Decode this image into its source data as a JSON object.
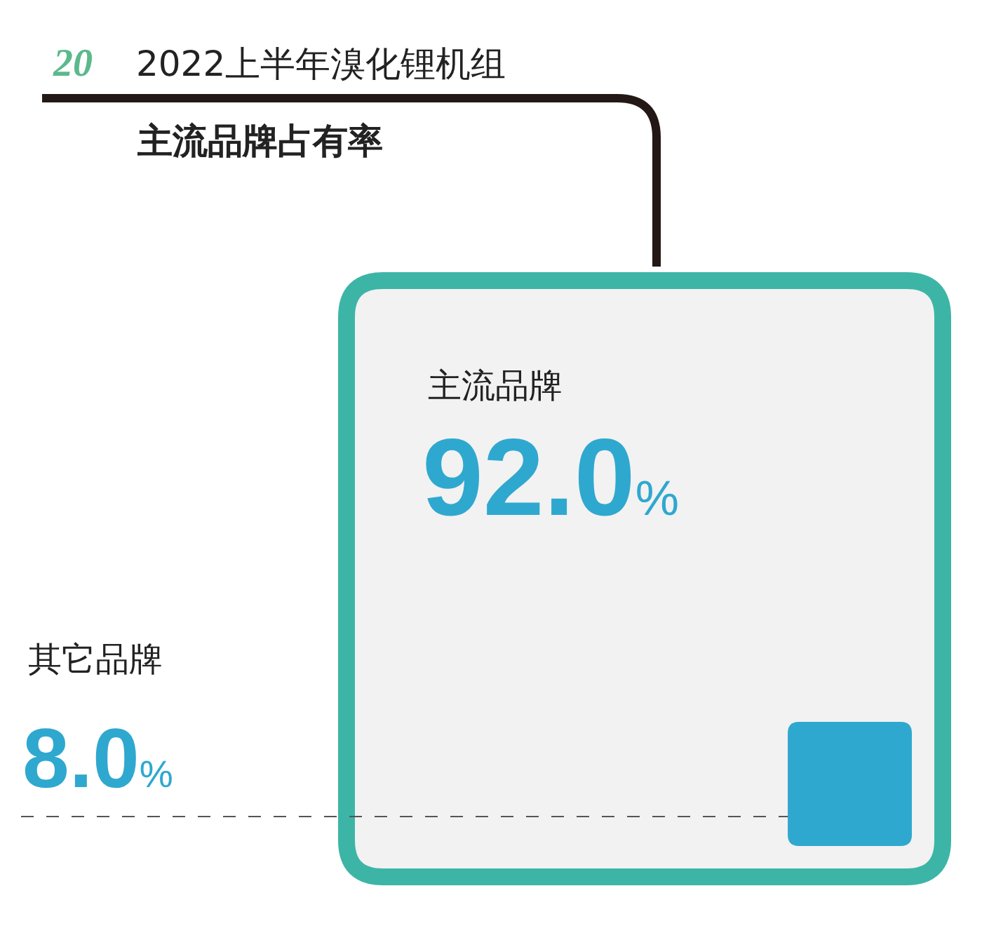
{
  "chart_data": {
    "type": "other",
    "title": "2022上半年溴化锂机组",
    "subtitle": "主流品牌占有率",
    "annotations": [
      "20"
    ],
    "categories": [
      "主流品牌",
      "其它品牌"
    ],
    "values": [
      92.0,
      8.0
    ],
    "value_labels": [
      "92.0%",
      "8.0%"
    ],
    "colors": [
      "#3db5a6",
      "#2fa8cf"
    ]
  }
}
